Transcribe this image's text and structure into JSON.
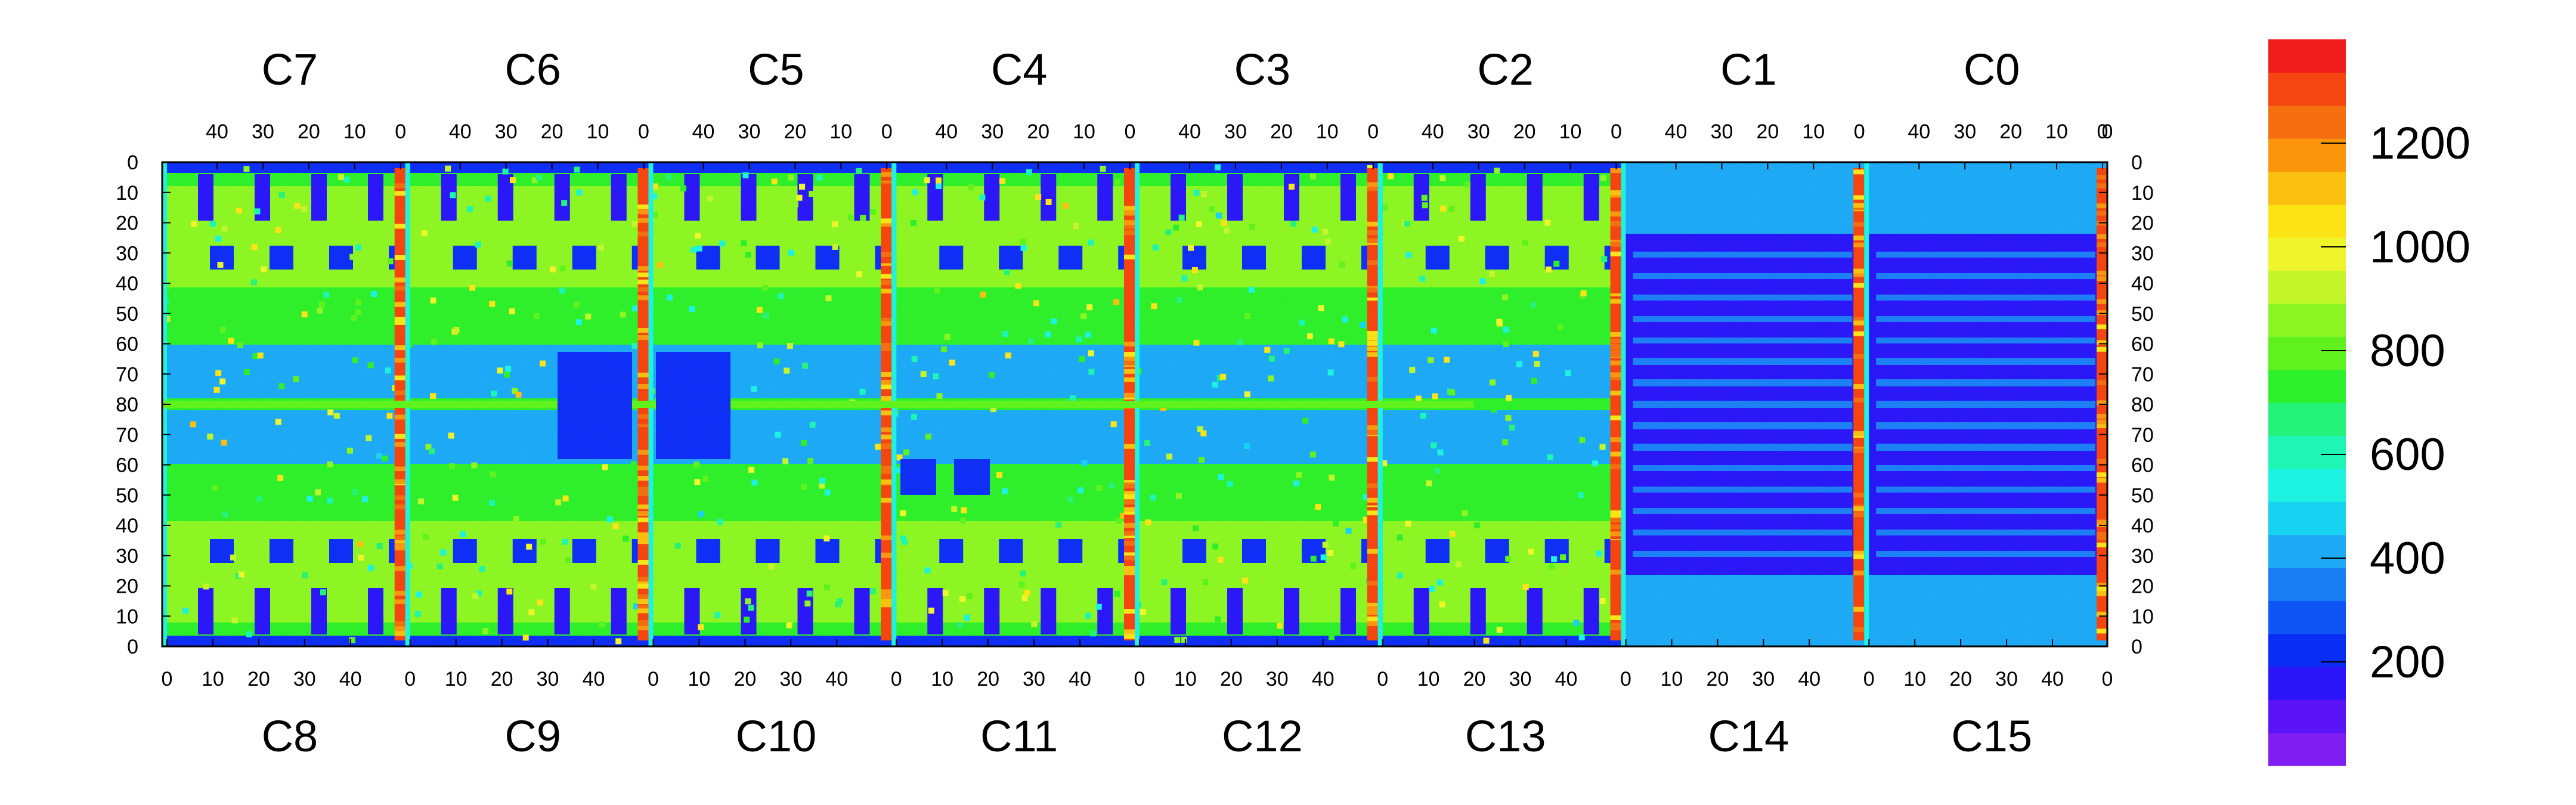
{
  "chart_data": {
    "type": "heatmap",
    "title": "",
    "xlabel": "",
    "ylabel": "",
    "top_chip_labels": [
      "C7",
      "C6",
      "C5",
      "C4",
      "C3",
      "C2",
      "C1",
      "C0"
    ],
    "bottom_chip_labels": [
      "C8",
      "C9",
      "C10",
      "C11",
      "C12",
      "C13",
      "C14",
      "C15"
    ],
    "top_x_ticks": [
      "40",
      "30",
      "20",
      "10",
      "0"
    ],
    "bottom_x_ticks": [
      "0",
      "10",
      "20",
      "30",
      "40"
    ],
    "top_x_tick_values": [
      40,
      30,
      20,
      10,
      0
    ],
    "bottom_x_tick_values": [
      0,
      10,
      20,
      30,
      40
    ],
    "chip_columns": 52,
    "y_ticks_upper": [
      "0",
      "10",
      "20",
      "30",
      "40",
      "50",
      "60",
      "70",
      "80"
    ],
    "y_ticks_lower": [
      "70",
      "60",
      "50",
      "40",
      "30",
      "20",
      "10",
      "0"
    ],
    "y_tick_values_upper": [
      0,
      10,
      20,
      30,
      40,
      50,
      60,
      70,
      80
    ],
    "y_tick_values_lower": [
      70,
      60,
      50,
      40,
      30,
      20,
      10,
      0
    ],
    "rows_per_half": 80,
    "colorbar_ticks": [
      "200",
      "400",
      "600",
      "800",
      "1000",
      "1200"
    ],
    "colorbar_tick_values": [
      200,
      400,
      600,
      800,
      1000,
      1200
    ],
    "colorbar_range": [
      0,
      1400
    ],
    "grid": false,
    "colorbar_colors": [
      "#7e1ef2",
      "#5a14f5",
      "#2b14f7",
      "#0a2df5",
      "#0f55f5",
      "#1a7ff5",
      "#1ea9f5",
      "#17d2f0",
      "#1ef2e0",
      "#1ff5b4",
      "#25f27a",
      "#2eef2b",
      "#5ff21e",
      "#8df523",
      "#c3f52a",
      "#eef52b",
      "#fbe315",
      "#fbbf10",
      "#fb960c",
      "#f56e10",
      "#f54510",
      "#f01e1e"
    ]
  }
}
